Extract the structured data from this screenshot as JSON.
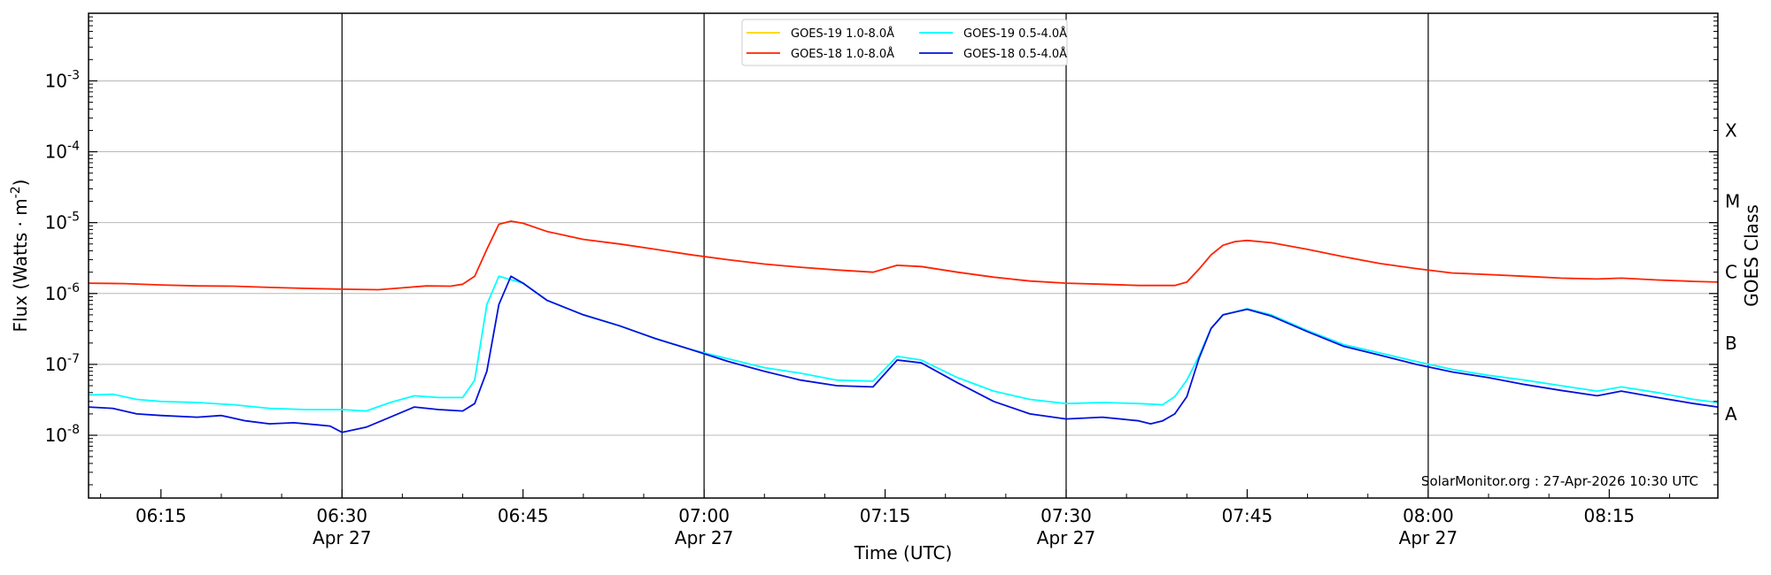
{
  "chart_data": {
    "type": "line",
    "title": "",
    "xlabel": "Time (UTC)",
    "ylabel": "Flux (Watts · m",
    "ylabel_sup": "-2",
    "ylabel_close": ")",
    "y2label": "GOES Class",
    "yscale": "log",
    "xlim": [
      "06:09",
      "08:24"
    ],
    "ylim": [
      1.3e-09,
      0.009
    ],
    "grid": "horizontal at decades",
    "y_ticks": [
      {
        "base": "10",
        "exp": "-8",
        "value": 1e-08
      },
      {
        "base": "10",
        "exp": "-7",
        "value": 1e-07
      },
      {
        "base": "10",
        "exp": "-6",
        "value": 1e-06
      },
      {
        "base": "10",
        "exp": "-5",
        "value": 1e-05
      },
      {
        "base": "10",
        "exp": "-4",
        "value": 0.0001
      },
      {
        "base": "10",
        "exp": "-3",
        "value": 0.001
      }
    ],
    "x_ticks": [
      {
        "time": "06:15",
        "date": ""
      },
      {
        "time": "06:30",
        "date": "Apr 27"
      },
      {
        "time": "06:45",
        "date": ""
      },
      {
        "time": "07:00",
        "date": "Apr 27"
      },
      {
        "time": "07:15",
        "date": ""
      },
      {
        "time": "07:30",
        "date": "Apr 27"
      },
      {
        "time": "07:45",
        "date": ""
      },
      {
        "time": "08:00",
        "date": "Apr 27"
      },
      {
        "time": "08:15",
        "date": ""
      }
    ],
    "vertical_lines": [
      "06:30",
      "07:00",
      "07:30",
      "08:00"
    ],
    "goes_classes": [
      {
        "label": "A",
        "value": 2e-08
      },
      {
        "label": "B",
        "value": 2e-07
      },
      {
        "label": "C",
        "value": 2e-06
      },
      {
        "label": "M",
        "value": 2e-05
      },
      {
        "label": "X",
        "value": 0.0002
      }
    ],
    "legend_position": "top-center",
    "annotation": "SolarMonitor.org : 27-Apr-2026 10:30 UTC",
    "series": [
      {
        "name": "GOES-19 1.0-8.0Å",
        "color": "#ffd500",
        "points": []
      },
      {
        "name": "GOES-18 1.0-8.0Å",
        "color": "#ff2200",
        "points": [
          [
            "06:09",
            1.4e-06
          ],
          [
            "06:12",
            1.38e-06
          ],
          [
            "06:15",
            1.32e-06
          ],
          [
            "06:18",
            1.28e-06
          ],
          [
            "06:21",
            1.27e-06
          ],
          [
            "06:24",
            1.22e-06
          ],
          [
            "06:27",
            1.18e-06
          ],
          [
            "06:30",
            1.15e-06
          ],
          [
            "06:33",
            1.13e-06
          ],
          [
            "06:35",
            1.2e-06
          ],
          [
            "06:37",
            1.28e-06
          ],
          [
            "06:39",
            1.27e-06
          ],
          [
            "06:40",
            1.35e-06
          ],
          [
            "06:41",
            1.75e-06
          ],
          [
            "06:42",
            4.2e-06
          ],
          [
            "06:43",
            9.5e-06
          ],
          [
            "06:44",
            1.05e-05
          ],
          [
            "06:45",
            9.8e-06
          ],
          [
            "06:47",
            7.5e-06
          ],
          [
            "06:50",
            5.8e-06
          ],
          [
            "06:53",
            5e-06
          ],
          [
            "06:56",
            4.2e-06
          ],
          [
            "06:59",
            3.5e-06
          ],
          [
            "07:02",
            3e-06
          ],
          [
            "07:05",
            2.6e-06
          ],
          [
            "07:08",
            2.35e-06
          ],
          [
            "07:11",
            2.15e-06
          ],
          [
            "07:14",
            2e-06
          ],
          [
            "07:16",
            2.5e-06
          ],
          [
            "07:18",
            2.4e-06
          ],
          [
            "07:21",
            2e-06
          ],
          [
            "07:24",
            1.7e-06
          ],
          [
            "07:27",
            1.5e-06
          ],
          [
            "07:30",
            1.4e-06
          ],
          [
            "07:33",
            1.35e-06
          ],
          [
            "07:36",
            1.3e-06
          ],
          [
            "07:39",
            1.3e-06
          ],
          [
            "07:40",
            1.45e-06
          ],
          [
            "07:41",
            2.2e-06
          ],
          [
            "07:42",
            3.5e-06
          ],
          [
            "07:43",
            4.8e-06
          ],
          [
            "07:44",
            5.4e-06
          ],
          [
            "07:45",
            5.6e-06
          ],
          [
            "07:47",
            5.2e-06
          ],
          [
            "07:50",
            4.2e-06
          ],
          [
            "07:53",
            3.3e-06
          ],
          [
            "07:56",
            2.65e-06
          ],
          [
            "07:59",
            2.25e-06
          ],
          [
            "08:02",
            1.95e-06
          ],
          [
            "08:05",
            1.85e-06
          ],
          [
            "08:08",
            1.75e-06
          ],
          [
            "08:11",
            1.65e-06
          ],
          [
            "08:14",
            1.6e-06
          ],
          [
            "08:16",
            1.65e-06
          ],
          [
            "08:19",
            1.55e-06
          ],
          [
            "08:22",
            1.48e-06
          ],
          [
            "08:24",
            1.45e-06
          ]
        ]
      },
      {
        "name": "GOES-19 0.5-4.0Å",
        "color": "#00ffff",
        "points": [
          [
            "06:09",
            3.7e-08
          ],
          [
            "06:11",
            3.8e-08
          ],
          [
            "06:13",
            3.2e-08
          ],
          [
            "06:15",
            3e-08
          ],
          [
            "06:18",
            2.9e-08
          ],
          [
            "06:21",
            2.7e-08
          ],
          [
            "06:24",
            2.4e-08
          ],
          [
            "06:27",
            2.3e-08
          ],
          [
            "06:30",
            2.3e-08
          ],
          [
            "06:32",
            2.2e-08
          ],
          [
            "06:34",
            2.9e-08
          ],
          [
            "06:36",
            3.6e-08
          ],
          [
            "06:38",
            3.4e-08
          ],
          [
            "06:40",
            3.4e-08
          ],
          [
            "06:41",
            6e-08
          ],
          [
            "06:42",
            7e-07
          ],
          [
            "06:43",
            1.75e-06
          ],
          [
            "06:45",
            1.4e-06
          ],
          [
            "06:47",
            8e-07
          ],
          [
            "06:50",
            5e-07
          ],
          [
            "06:53",
            3.5e-07
          ],
          [
            "06:56",
            2.3e-07
          ],
          [
            "06:59",
            1.6e-07
          ],
          [
            "07:02",
            1.2e-07
          ],
          [
            "07:05",
            9e-08
          ],
          [
            "07:08",
            7.5e-08
          ],
          [
            "07:11",
            6e-08
          ],
          [
            "07:14",
            5.8e-08
          ],
          [
            "07:16",
            1.3e-07
          ],
          [
            "07:18",
            1.15e-07
          ],
          [
            "07:21",
            6.5e-08
          ],
          [
            "07:24",
            4.2e-08
          ],
          [
            "07:27",
            3.2e-08
          ],
          [
            "07:30",
            2.8e-08
          ],
          [
            "07:33",
            2.9e-08
          ],
          [
            "07:36",
            2.8e-08
          ],
          [
            "07:38",
            2.7e-08
          ],
          [
            "07:39",
            3.5e-08
          ],
          [
            "07:40",
            6e-08
          ],
          [
            "07:41",
            1.3e-07
          ],
          [
            "07:42",
            3.2e-07
          ],
          [
            "07:43",
            5e-07
          ],
          [
            "07:45",
            6.1e-07
          ],
          [
            "07:47",
            5e-07
          ],
          [
            "07:50",
            3e-07
          ],
          [
            "07:53",
            1.9e-07
          ],
          [
            "07:56",
            1.45e-07
          ],
          [
            "07:59",
            1.1e-07
          ],
          [
            "08:02",
            8.5e-08
          ],
          [
            "08:05",
            7e-08
          ],
          [
            "08:08",
            6e-08
          ],
          [
            "08:11",
            5e-08
          ],
          [
            "08:14",
            4.2e-08
          ],
          [
            "08:16",
            4.8e-08
          ],
          [
            "08:19",
            4e-08
          ],
          [
            "08:22",
            3.2e-08
          ],
          [
            "08:24",
            2.9e-08
          ]
        ]
      },
      {
        "name": "GOES-18 0.5-4.0Å",
        "color": "#0011dd",
        "points": [
          [
            "06:09",
            2.5e-08
          ],
          [
            "06:11",
            2.4e-08
          ],
          [
            "06:13",
            2e-08
          ],
          [
            "06:15",
            1.9e-08
          ],
          [
            "06:18",
            1.8e-08
          ],
          [
            "06:20",
            1.9e-08
          ],
          [
            "06:22",
            1.6e-08
          ],
          [
            "06:24",
            1.45e-08
          ],
          [
            "06:26",
            1.5e-08
          ],
          [
            "06:28",
            1.4e-08
          ],
          [
            "06:29",
            1.35e-08
          ],
          [
            "06:30",
            1.1e-08
          ],
          [
            "06:32",
            1.3e-08
          ],
          [
            "06:34",
            1.8e-08
          ],
          [
            "06:36",
            2.5e-08
          ],
          [
            "06:38",
            2.3e-08
          ],
          [
            "06:40",
            2.2e-08
          ],
          [
            "06:41",
            2.8e-08
          ],
          [
            "06:42",
            8e-08
          ],
          [
            "06:43",
            7e-07
          ],
          [
            "06:44",
            1.75e-06
          ],
          [
            "06:45",
            1.4e-06
          ],
          [
            "06:47",
            8e-07
          ],
          [
            "06:50",
            5e-07
          ],
          [
            "06:53",
            3.5e-07
          ],
          [
            "06:56",
            2.3e-07
          ],
          [
            "06:59",
            1.6e-07
          ],
          [
            "07:02",
            1.1e-07
          ],
          [
            "07:05",
            8e-08
          ],
          [
            "07:08",
            6e-08
          ],
          [
            "07:11",
            5e-08
          ],
          [
            "07:14",
            4.8e-08
          ],
          [
            "07:16",
            1.15e-07
          ],
          [
            "07:18",
            1.05e-07
          ],
          [
            "07:21",
            5.5e-08
          ],
          [
            "07:24",
            3e-08
          ],
          [
            "07:27",
            2e-08
          ],
          [
            "07:30",
            1.7e-08
          ],
          [
            "07:33",
            1.8e-08
          ],
          [
            "07:36",
            1.6e-08
          ],
          [
            "07:37",
            1.45e-08
          ],
          [
            "07:38",
            1.6e-08
          ],
          [
            "07:39",
            2e-08
          ],
          [
            "07:40",
            3.5e-08
          ],
          [
            "07:41",
            1.2e-07
          ],
          [
            "07:42",
            3.2e-07
          ],
          [
            "07:43",
            5e-07
          ],
          [
            "07:45",
            6e-07
          ],
          [
            "07:47",
            4.8e-07
          ],
          [
            "07:50",
            2.9e-07
          ],
          [
            "07:53",
            1.8e-07
          ],
          [
            "07:56",
            1.35e-07
          ],
          [
            "07:59",
            1e-07
          ],
          [
            "08:02",
            7.8e-08
          ],
          [
            "08:05",
            6.5e-08
          ],
          [
            "08:08",
            5.2e-08
          ],
          [
            "08:11",
            4.3e-08
          ],
          [
            "08:14",
            3.6e-08
          ],
          [
            "08:16",
            4.2e-08
          ],
          [
            "08:19",
            3.4e-08
          ],
          [
            "08:22",
            2.8e-08
          ],
          [
            "08:24",
            2.5e-08
          ]
        ]
      }
    ]
  }
}
